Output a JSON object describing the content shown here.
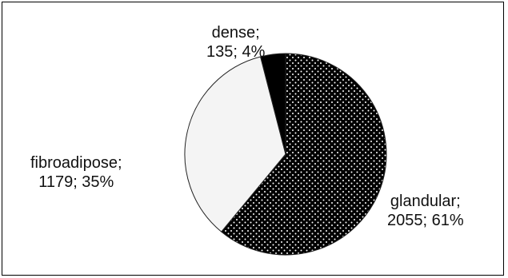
{
  "chart_data": {
    "type": "pie",
    "start": "top, clockwise",
    "slices": [
      {
        "label": "glandular",
        "value": 2055,
        "percent": "61%",
        "fill": "#000000",
        "pattern": "white-dots",
        "line1": "glandular;",
        "line2": "2055; 61%"
      },
      {
        "label": "fibroadipose",
        "value": 1179,
        "percent": "35%",
        "fill": "#f4f4f4",
        "pattern": "solid",
        "line1": "fibroadipose;",
        "line2": "1179; 35%"
      },
      {
        "label": "dense",
        "value": 135,
        "percent": "4%",
        "fill": "#000000",
        "pattern": "solid",
        "line1": "dense;",
        "line2": "135; 4%"
      }
    ]
  }
}
